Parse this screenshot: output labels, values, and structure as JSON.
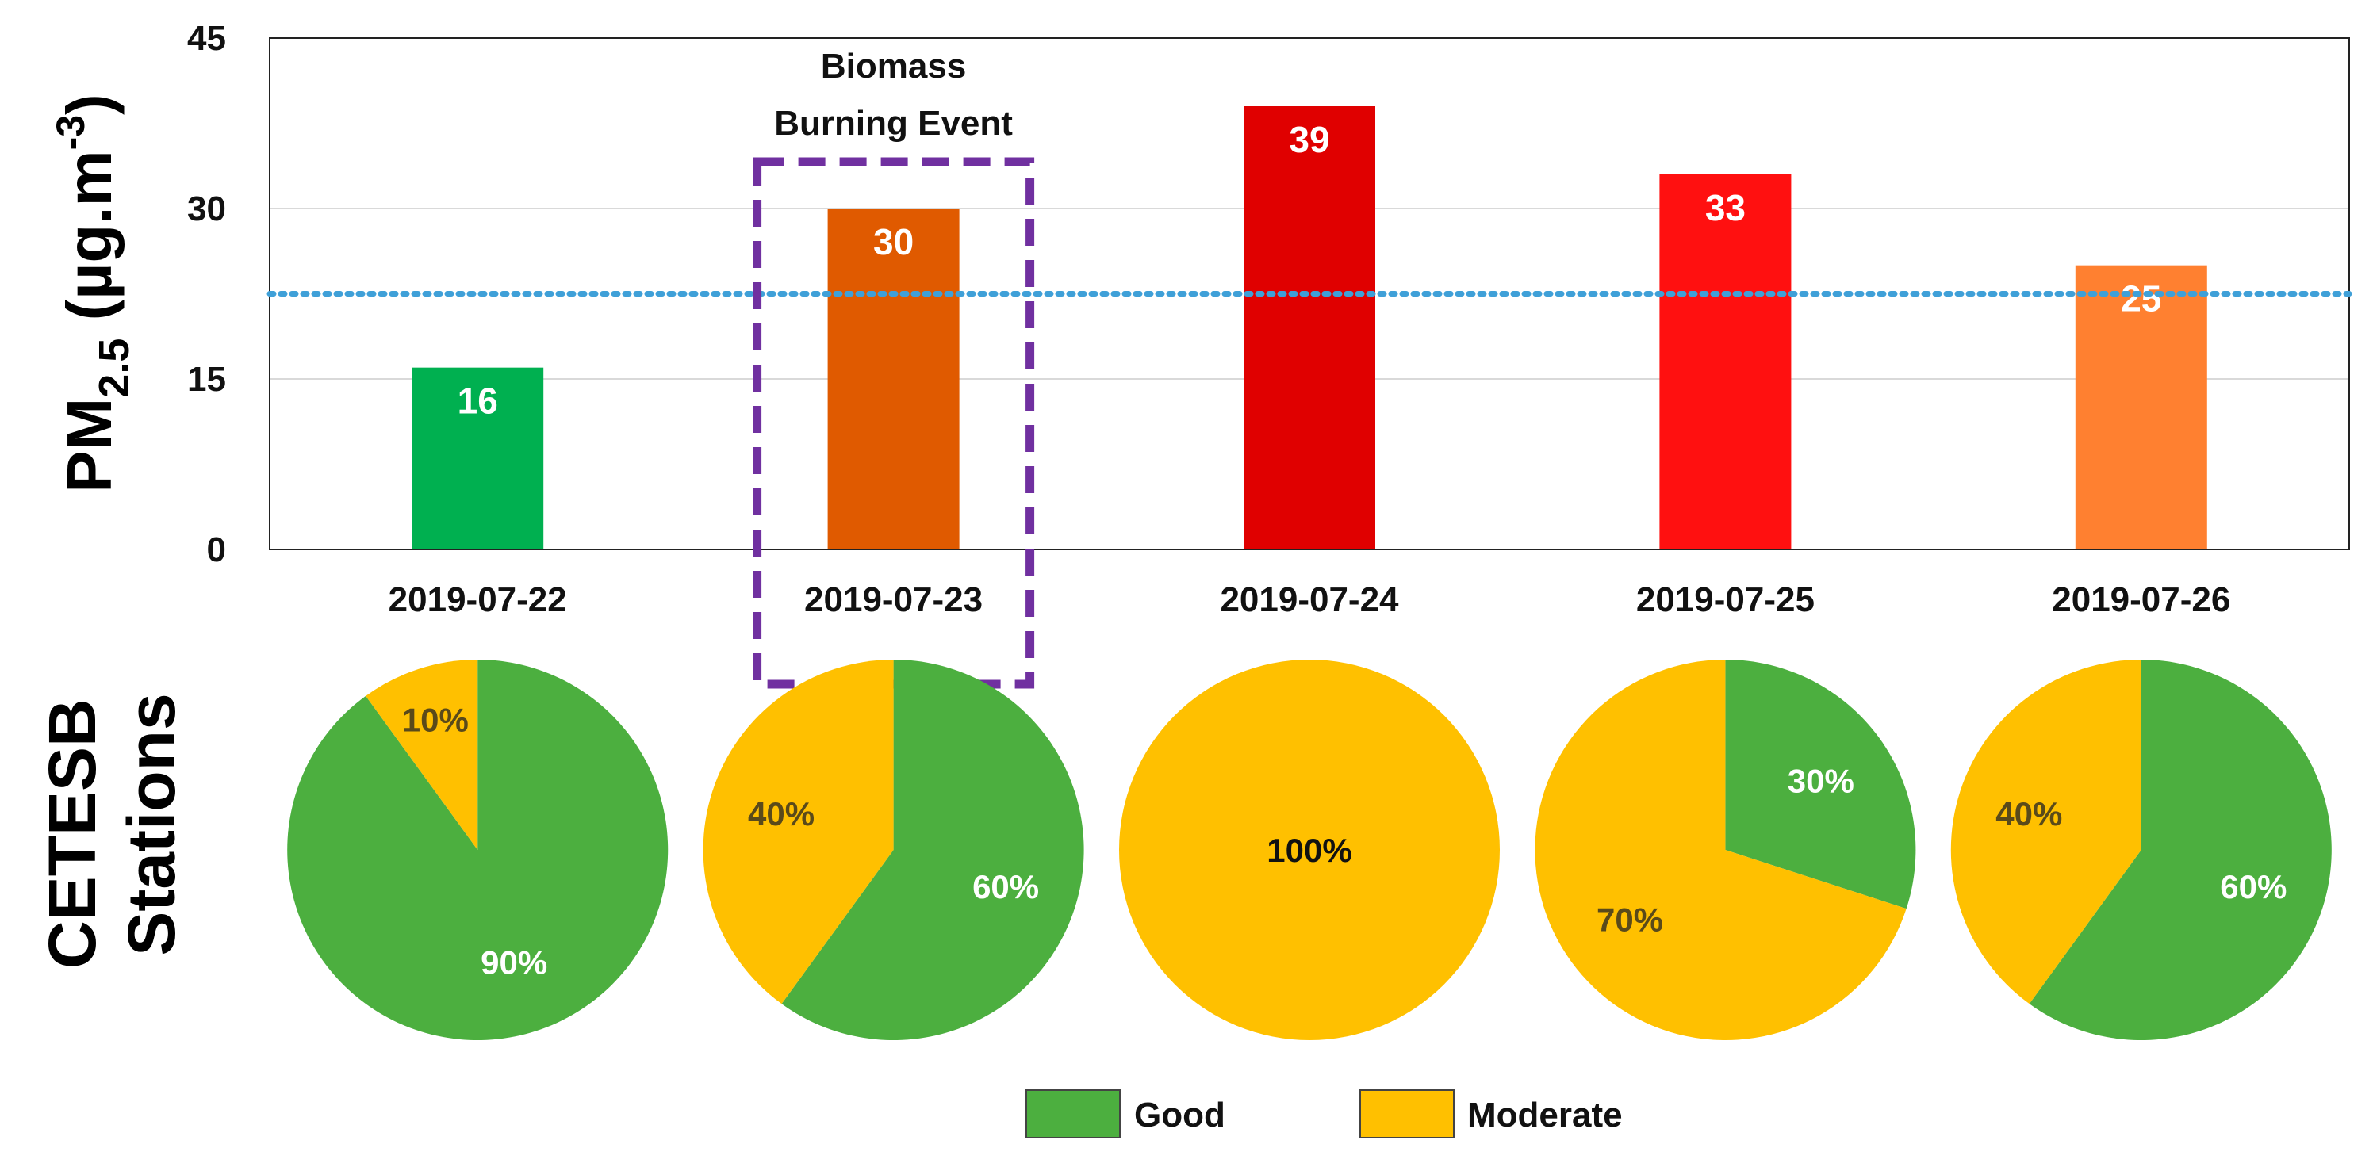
{
  "chart_data": [
    {
      "type": "bar",
      "categories": [
        "2019-07-22",
        "2019-07-23",
        "2019-07-24",
        "2019-07-25",
        "2019-07-26"
      ],
      "values": [
        16,
        30,
        39,
        33,
        25
      ],
      "value_labels": [
        "16",
        "30",
        "39",
        "33",
        "25"
      ],
      "bar_colors": [
        "#00b050",
        "#e05a00",
        "#e00000",
        "#ff1010",
        "#ff8030"
      ],
      "ylabel": {
        "main": "PM",
        "sub": "2.5",
        "units_open": " (µg.m",
        "units_sup": "-3",
        "units_close": ")"
      },
      "ylim": [
        0,
        45
      ],
      "yticks": [
        0,
        15,
        30,
        45
      ],
      "ytick_labels": [
        "0",
        "15",
        "30",
        "45"
      ],
      "grid": true,
      "reference_line": {
        "value": 22.5,
        "color": "#3fa0d8",
        "style": "dotted"
      },
      "annotation": {
        "lines": [
          "Biomass",
          "Burning Event"
        ],
        "category_index": 1,
        "box_color": "#7030a0"
      }
    },
    {
      "type": "pie",
      "title_lines": [
        "CETESB",
        "Stations"
      ],
      "categories": [
        "2019-07-22",
        "2019-07-23",
        "2019-07-24",
        "2019-07-25",
        "2019-07-26"
      ],
      "series": [
        {
          "name": "Good",
          "color": "#4caf3f"
        },
        {
          "name": "Moderate",
          "color": "#ffc000"
        }
      ],
      "pies": [
        {
          "good": 90,
          "moderate": 10,
          "good_label": "90%",
          "moderate_label": "10%"
        },
        {
          "good": 60,
          "moderate": 40,
          "good_label": "60%",
          "moderate_label": "40%"
        },
        {
          "good": 0,
          "moderate": 100,
          "good_label": "",
          "moderate_label": "100%"
        },
        {
          "good": 30,
          "moderate": 70,
          "good_label": "30%",
          "moderate_label": "70%"
        },
        {
          "good": 60,
          "moderate": 40,
          "good_label": "60%",
          "moderate_label": "40%"
        }
      ],
      "legend": [
        {
          "label": "Good",
          "color": "#4caf3f"
        },
        {
          "label": "Moderate",
          "color": "#ffc000"
        }
      ],
      "label_colors": {
        "on_good": "#ffffff",
        "on_moderate": "#5a4a1a",
        "full": "#111111"
      }
    }
  ]
}
